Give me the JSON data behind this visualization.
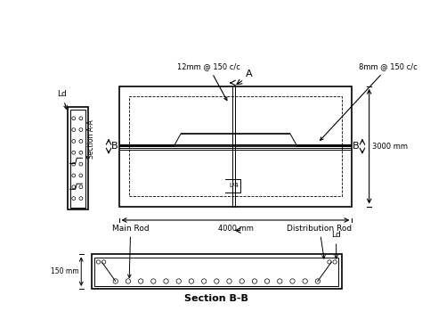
{
  "bg_color": "#ffffff",
  "line_color": "#000000",
  "label_12mm": "12mm @ 150 c/c",
  "label_8mm": "8mm @ 150 c/c",
  "label_3000mm": "3000 mm",
  "label_4000mm": "4000 mm",
  "label_L4": "L/4",
  "section_aa_label": "Section A-A",
  "section_bb_label": "Section B-B",
  "ld_label": "Ld",
  "main_rod_label": "Main Rod",
  "dist_rod_label": "Distribution Rod",
  "label_150mm": "150 mm"
}
